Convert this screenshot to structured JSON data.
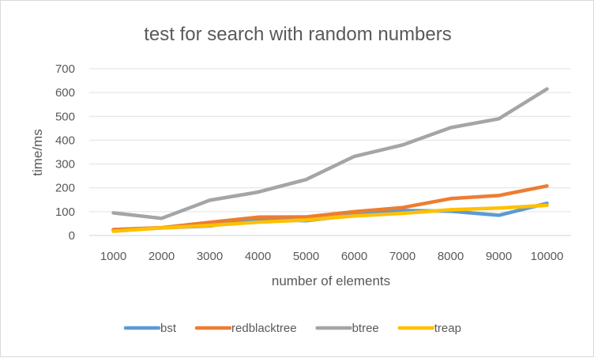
{
  "chart_data": {
    "type": "line",
    "title": "test for search with random numbers",
    "xlabel": "number of elements",
    "ylabel": "time/ms",
    "categories": [
      "1000",
      "2000",
      "3000",
      "4000",
      "5000",
      "6000",
      "7000",
      "8000",
      "9000",
      "10000"
    ],
    "ylim": [
      0,
      700
    ],
    "yticks": [
      "0",
      "100",
      "200",
      "300",
      "400",
      "500",
      "600",
      "700"
    ],
    "grid": true,
    "legend_position": "bottom",
    "series": [
      {
        "name": "bst",
        "color": "#5b9bd5",
        "values": [
          25,
          32,
          40,
          68,
          62,
          85,
          105,
          102,
          85,
          135
        ]
      },
      {
        "name": "redblacktree",
        "color": "#ed7d31",
        "values": [
          25,
          33,
          55,
          77,
          78,
          100,
          117,
          155,
          168,
          208
        ]
      },
      {
        "name": "btree",
        "color": "#a5a5a5",
        "values": [
          95,
          72,
          148,
          182,
          235,
          332,
          380,
          453,
          490,
          615
        ]
      },
      {
        "name": "treap",
        "color": "#ffc000",
        "values": [
          18,
          32,
          42,
          56,
          65,
          82,
          93,
          108,
          115,
          127
        ]
      }
    ]
  }
}
